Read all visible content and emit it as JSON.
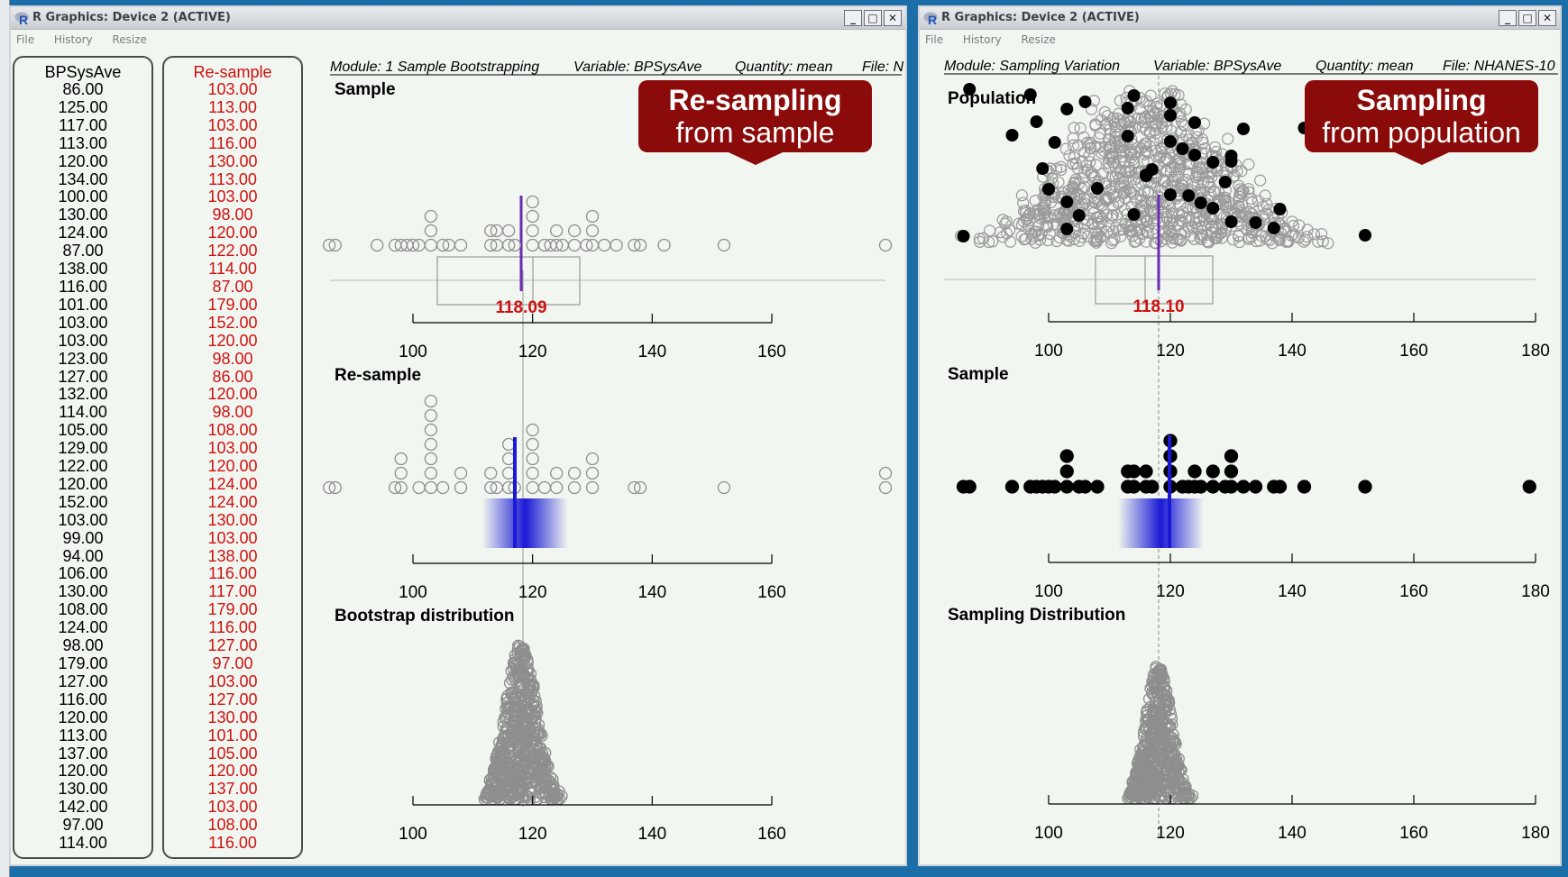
{
  "windows": [
    {
      "title": "R Graphics: Device 2 (ACTIVE)",
      "menu": [
        "File",
        "History",
        "Resize"
      ]
    },
    {
      "title": "R Graphics: Device 2 (ACTIVE)",
      "menu": [
        "File",
        "History",
        "Resize"
      ]
    }
  ],
  "left": {
    "info": {
      "module": "Module: 1 Sample Bootstrapping",
      "variable": "Variable: BPSysAve",
      "quantity": "Quantity: mean",
      "file": "File: N"
    },
    "sample_header": "BPSysAve",
    "resample_header": "Re-sample",
    "sample_values": [
      "86.00",
      "125.00",
      "117.00",
      "113.00",
      "120.00",
      "134.00",
      "100.00",
      "130.00",
      "124.00",
      "87.00",
      "138.00",
      "116.00",
      "101.00",
      "103.00",
      "103.00",
      "123.00",
      "127.00",
      "132.00",
      "114.00",
      "105.00",
      "129.00",
      "122.00",
      "120.00",
      "152.00",
      "103.00",
      "99.00",
      "94.00",
      "106.00",
      "130.00",
      "108.00",
      "124.00",
      "98.00",
      "179.00",
      "127.00",
      "116.00",
      "120.00",
      "113.00",
      "137.00",
      "120.00",
      "130.00",
      "142.00",
      "97.00",
      "114.00"
    ],
    "resample_values": [
      "103.00",
      "113.00",
      "103.00",
      "116.00",
      "130.00",
      "113.00",
      "103.00",
      "98.00",
      "120.00",
      "122.00",
      "114.00",
      "87.00",
      "179.00",
      "152.00",
      "120.00",
      "98.00",
      "86.00",
      "120.00",
      "98.00",
      "108.00",
      "103.00",
      "120.00",
      "124.00",
      "124.00",
      "130.00",
      "103.00",
      "138.00",
      "116.00",
      "117.00",
      "179.00",
      "116.00",
      "127.00",
      "97.00",
      "103.00",
      "127.00",
      "130.00",
      "101.00",
      "105.00",
      "120.00",
      "137.00",
      "103.00",
      "108.00",
      "116.00"
    ],
    "panel_titles": [
      "Sample",
      "Re-sample",
      "Bootstrap distribution"
    ],
    "mean_label": "118.09",
    "axis_ticks": [
      "100",
      "120",
      "140",
      "160"
    ],
    "callout_line1": "Re-sampling",
    "callout_line2": "from sample"
  },
  "right": {
    "info": {
      "module": "Module: Sampling Variation",
      "variable": "Variable: BPSysAve",
      "quantity": "Quantity: mean",
      "file": "File: NHANES-10"
    },
    "panel_titles": [
      "Population",
      "Sample",
      "Sampling Distribution"
    ],
    "mean_label": "118.10",
    "axis_ticks": [
      "100",
      "120",
      "140",
      "160",
      "180"
    ],
    "callout_line1": "Sampling",
    "callout_line2": "from population"
  },
  "colors": {
    "titlebar": "#d6dadf",
    "background": "#f1f6f0",
    "accent_red": "#8b0a0a",
    "mean_purple": "#6a2ab8",
    "resample_blue": "#1a1ad6",
    "dots_gray": "#8e8e8e"
  }
}
